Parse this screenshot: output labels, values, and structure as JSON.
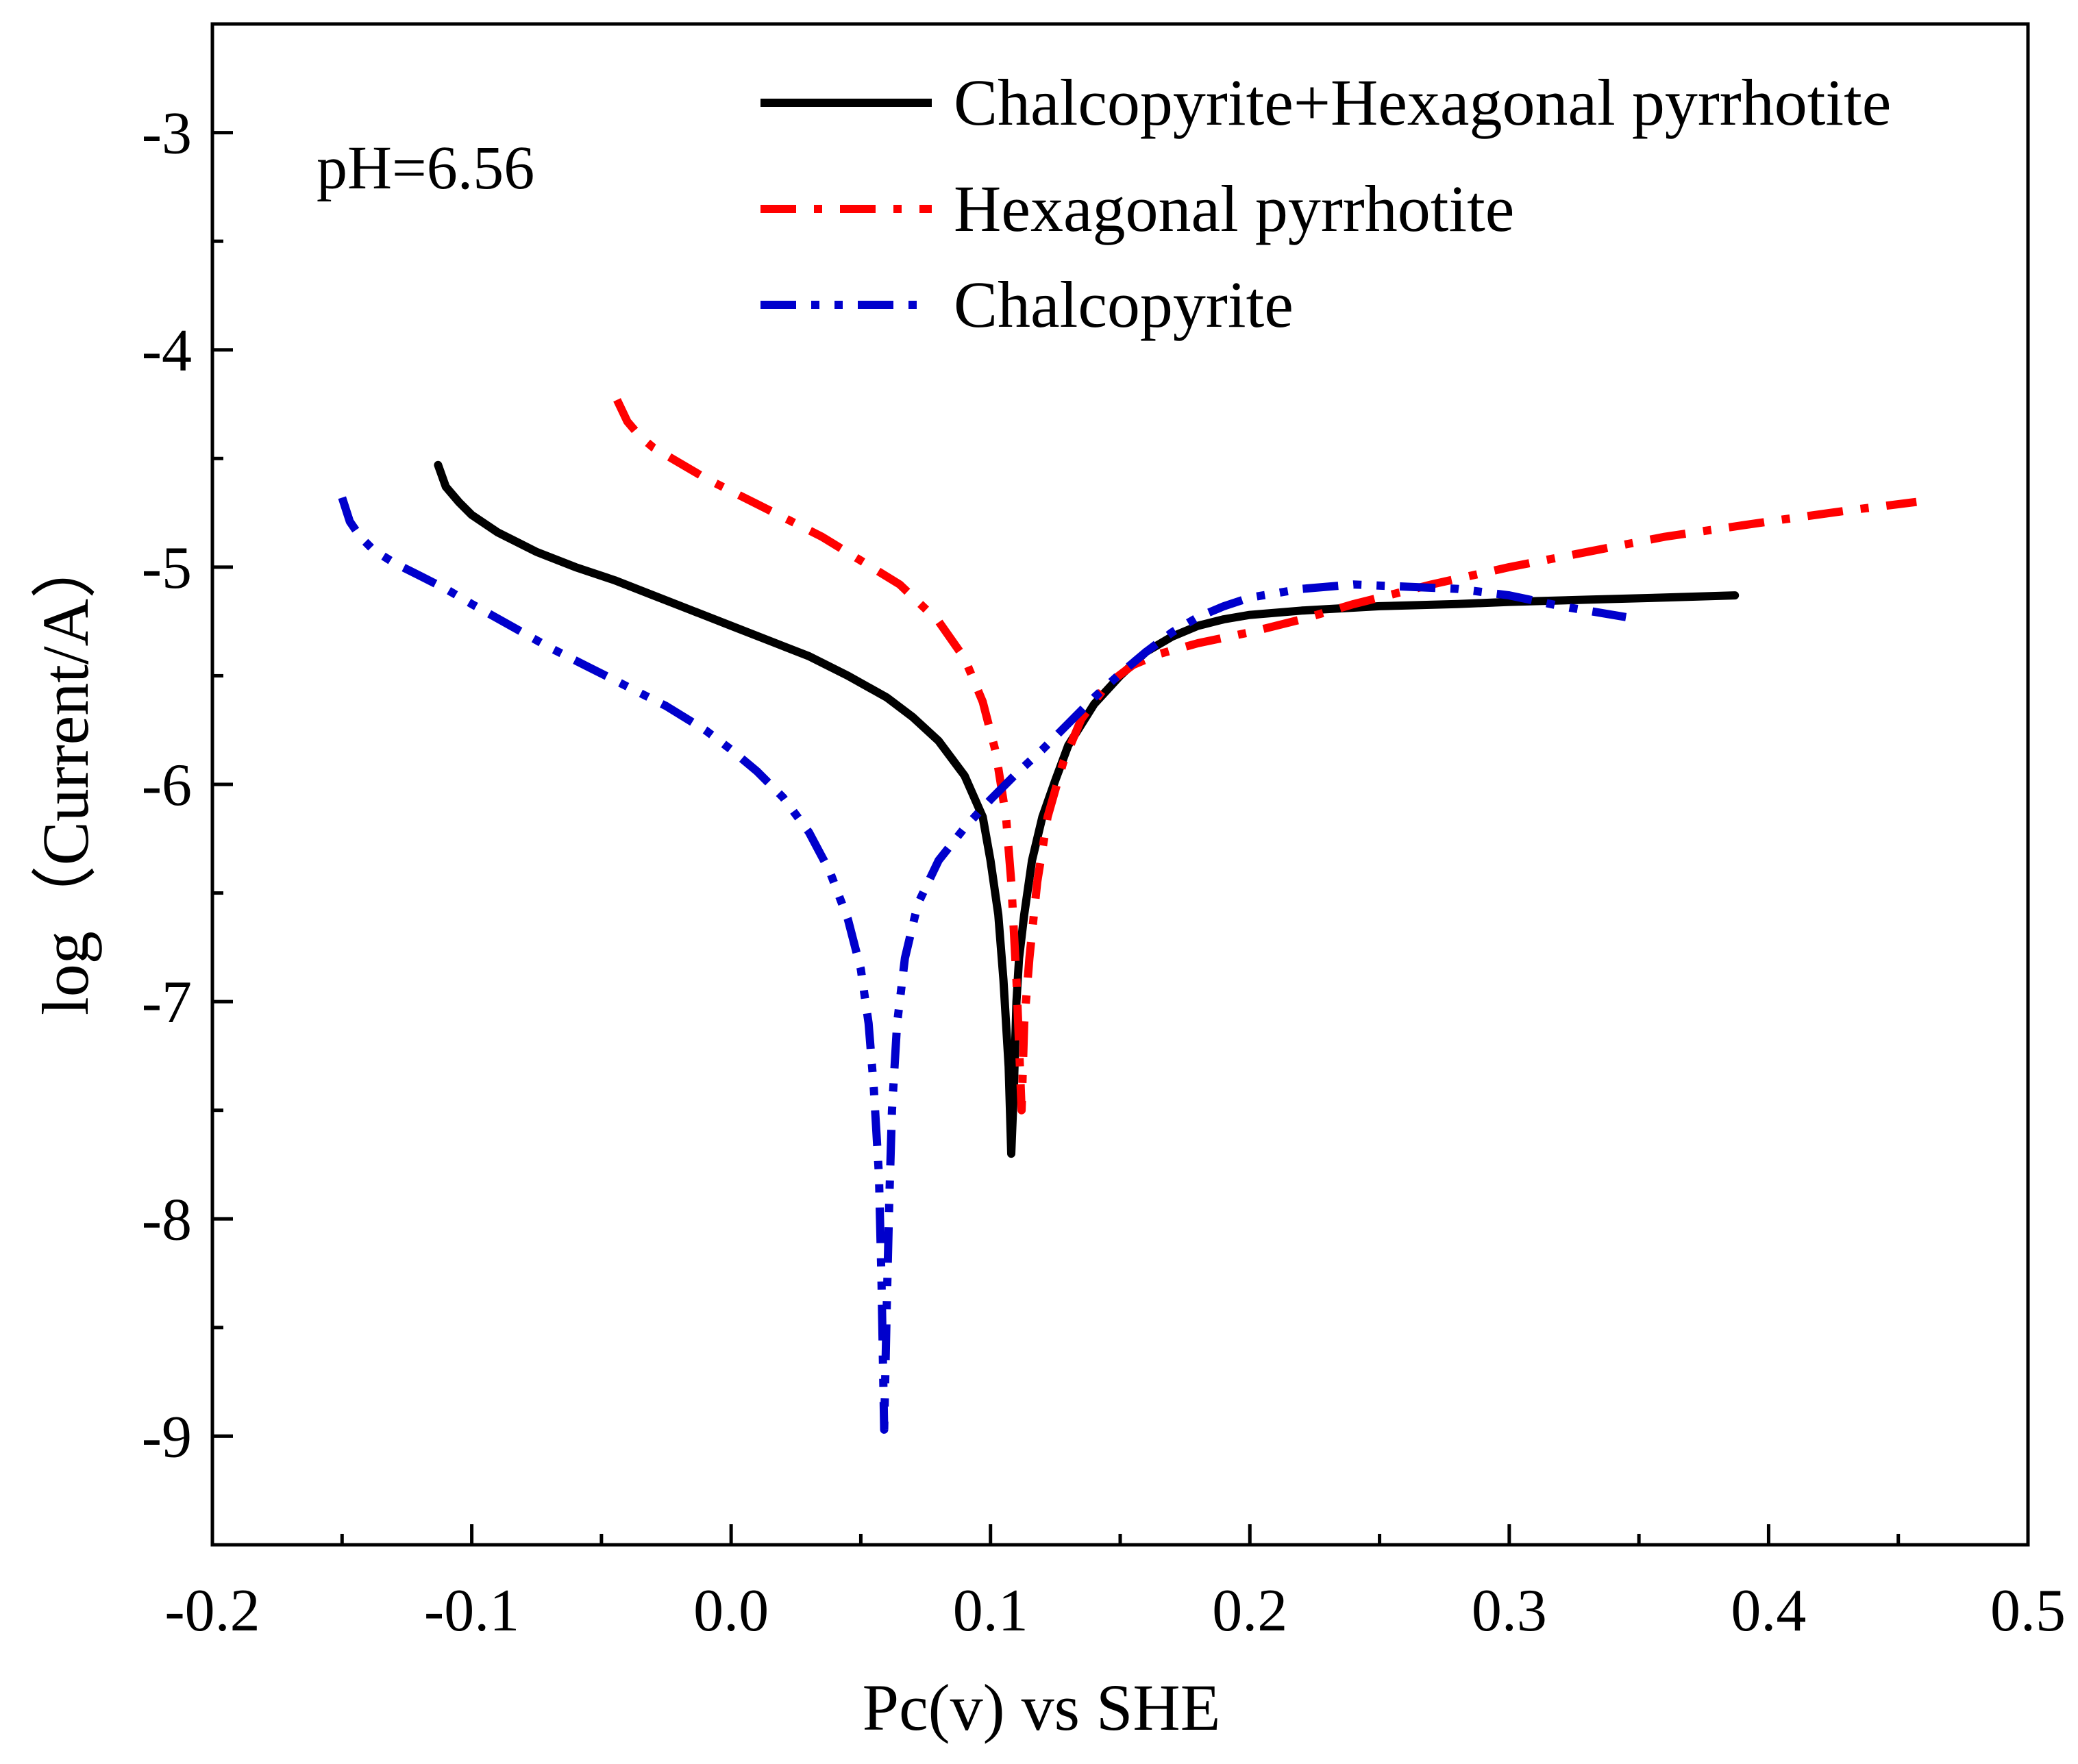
{
  "chart_data": {
    "type": "line",
    "xlabel": "Pc(v) vs SHE",
    "ylabel": "log（Current/A）",
    "xlim": [
      -0.2,
      0.5
    ],
    "ylim": [
      -9.5,
      -2.5
    ],
    "x_major_ticks": [
      -0.2,
      -0.1,
      0.0,
      0.1,
      0.2,
      0.3,
      0.4,
      0.5
    ],
    "x_tick_labels": [
      "-0.2",
      "-0.1",
      "0.0",
      "0.1",
      "0.2",
      "0.3",
      "0.4",
      "0.5"
    ],
    "y_major_ticks": [
      -3,
      -4,
      -5,
      -6,
      -7,
      -8,
      -9
    ],
    "y_tick_labels": [
      "-3",
      "-4",
      "-5",
      "-6",
      "-7",
      "-8",
      "-9"
    ],
    "grid": false,
    "legend_position": "top-right",
    "annotation": "pH=6.56",
    "series": [
      {
        "name": "Chalcopyrite+Hexagonal pyrrhotite",
        "color": "#000000",
        "dash": "solid",
        "x": [
          -0.113,
          -0.11,
          -0.105,
          -0.1,
          -0.09,
          -0.075,
          -0.06,
          -0.045,
          -0.03,
          -0.015,
          0.0,
          0.015,
          0.03,
          0.045,
          0.06,
          0.07,
          0.08,
          0.09,
          0.097,
          0.1,
          0.103,
          0.105,
          0.107,
          0.108,
          0.109,
          0.11,
          0.111,
          0.113,
          0.116,
          0.12,
          0.125,
          0.13,
          0.14,
          0.15,
          0.16,
          0.17,
          0.18,
          0.19,
          0.2,
          0.22,
          0.25,
          0.28,
          0.3,
          0.33,
          0.36,
          0.387
        ],
        "y": [
          -4.53,
          -4.63,
          -4.7,
          -4.76,
          -4.84,
          -4.93,
          -5.0,
          -5.06,
          -5.13,
          -5.2,
          -5.27,
          -5.34,
          -5.41,
          -5.5,
          -5.6,
          -5.69,
          -5.8,
          -5.96,
          -6.15,
          -6.35,
          -6.6,
          -6.9,
          -7.3,
          -7.7,
          -7.4,
          -7.0,
          -6.8,
          -6.6,
          -6.35,
          -6.15,
          -5.98,
          -5.82,
          -5.63,
          -5.5,
          -5.39,
          -5.32,
          -5.27,
          -5.24,
          -5.22,
          -5.2,
          -5.18,
          -5.17,
          -5.16,
          -5.15,
          -5.14,
          -5.13
        ]
      },
      {
        "name": "Hexagonal pyrrhotite",
        "color": "#ff0000",
        "dash": "dash-dot",
        "x": [
          -0.044,
          -0.04,
          -0.035,
          -0.03,
          -0.02,
          -0.01,
          0.0,
          0.01,
          0.02,
          0.035,
          0.05,
          0.065,
          0.08,
          0.09,
          0.097,
          0.102,
          0.106,
          0.108,
          0.11,
          0.111,
          0.112,
          0.113,
          0.115,
          0.118,
          0.122,
          0.128,
          0.135,
          0.145,
          0.155,
          0.165,
          0.18,
          0.2,
          0.22,
          0.24,
          0.27,
          0.3,
          0.33,
          0.36,
          0.4,
          0.43,
          0.457
        ],
        "y": [
          -4.23,
          -4.33,
          -4.4,
          -4.45,
          -4.52,
          -4.59,
          -4.65,
          -4.71,
          -4.77,
          -4.86,
          -4.97,
          -5.08,
          -5.25,
          -5.42,
          -5.62,
          -5.85,
          -6.15,
          -6.45,
          -6.9,
          -7.2,
          -7.5,
          -7.1,
          -6.8,
          -6.45,
          -6.15,
          -5.9,
          -5.7,
          -5.54,
          -5.45,
          -5.4,
          -5.35,
          -5.3,
          -5.24,
          -5.17,
          -5.08,
          -5.0,
          -4.93,
          -4.86,
          -4.79,
          -4.74,
          -4.7
        ]
      },
      {
        "name": "Chalcopyrite",
        "color": "#0000cc",
        "dash": "dash-dot-dot",
        "x": [
          -0.15,
          -0.147,
          -0.143,
          -0.138,
          -0.13,
          -0.12,
          -0.11,
          -0.1,
          -0.085,
          -0.07,
          -0.055,
          -0.04,
          -0.025,
          -0.01,
          0.0,
          0.01,
          0.02,
          0.03,
          0.038,
          0.045,
          0.05,
          0.053,
          0.055,
          0.057,
          0.058,
          0.059,
          0.06,
          0.061,
          0.062,
          0.064,
          0.067,
          0.072,
          0.08,
          0.09,
          0.1,
          0.11,
          0.12,
          0.13,
          0.14,
          0.15,
          0.16,
          0.17,
          0.18,
          0.19,
          0.2,
          0.22,
          0.24,
          0.26,
          0.28,
          0.3,
          0.32,
          0.345
        ],
        "y": [
          -4.68,
          -4.79,
          -4.86,
          -4.92,
          -4.98,
          -5.04,
          -5.1,
          -5.17,
          -5.27,
          -5.37,
          -5.46,
          -5.55,
          -5.64,
          -5.75,
          -5.84,
          -5.94,
          -6.06,
          -6.22,
          -6.4,
          -6.62,
          -6.85,
          -7.1,
          -7.4,
          -7.8,
          -8.3,
          -8.97,
          -8.4,
          -7.9,
          -7.5,
          -7.1,
          -6.8,
          -6.55,
          -6.35,
          -6.2,
          -6.07,
          -5.95,
          -5.84,
          -5.72,
          -5.6,
          -5.49,
          -5.39,
          -5.3,
          -5.23,
          -5.18,
          -5.14,
          -5.1,
          -5.08,
          -5.09,
          -5.1,
          -5.13,
          -5.18,
          -5.23
        ]
      }
    ]
  }
}
